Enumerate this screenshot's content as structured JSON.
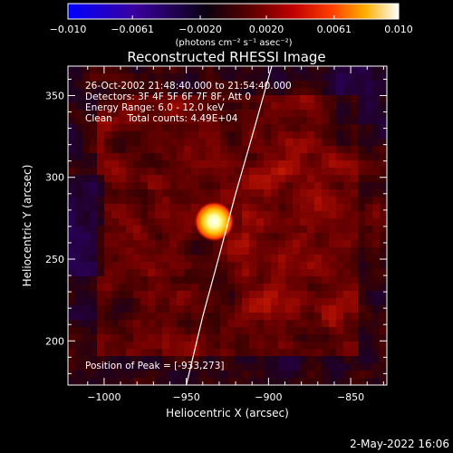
{
  "chart_data": {
    "type": "heatmap",
    "title": "Reconstructed RHESSI Image",
    "xlabel": "Heliocentric X (arcsec)",
    "ylabel": "Heliocentric Y (arcsec)",
    "xlim": [
      -1022,
      -828
    ],
    "ylim": [
      173,
      368
    ],
    "x_ticks": [
      -1000,
      -950,
      -900,
      -850
    ],
    "x_tick_labels": [
      "−1000",
      "−950",
      "−900",
      "−850"
    ],
    "y_ticks": [
      200,
      250,
      300,
      350
    ],
    "y_tick_labels": [
      "200",
      "250",
      "300",
      "350"
    ],
    "colorbar": {
      "min": -0.01,
      "max": 0.01,
      "ticks": [
        -0.01,
        -0.0061,
        -0.002,
        0.002,
        0.0061,
        0.01
      ],
      "tick_labels": [
        "−0.010",
        "−0.0061",
        "−0.0020",
        "0.0020",
        "0.0061",
        "0.010"
      ],
      "unit_label": "(photons cm⁻² s⁻¹ asec⁻²)",
      "colors": [
        "#0000ff",
        "#40007f",
        "#000000",
        "#7f0000",
        "#ff0000",
        "#ff8000",
        "#ffff00",
        "#ffffff"
      ]
    },
    "peak": {
      "x": -933,
      "y": 273
    },
    "info_lines": [
      "26-Oct-2002 21:48:40.000 to 21:54:40.000",
      "Detectors: 3F 4F 5F 6F 7F 8F, Att 0",
      "Energy Range: 6.0 - 12.0 keV",
      "Clean     Total counts: 4.49E+04"
    ],
    "peak_label": "Position of Peak = [-933,273]",
    "limb_points": [
      [
        -950,
        173
      ],
      [
        -940,
        215
      ],
      [
        -930,
        252
      ],
      [
        -920,
        290
      ],
      [
        -910,
        325
      ],
      [
        -898,
        368
      ]
    ],
    "grid": false,
    "legend": "none"
  },
  "footer": {
    "timestamp": "2-May-2022 16:06"
  }
}
